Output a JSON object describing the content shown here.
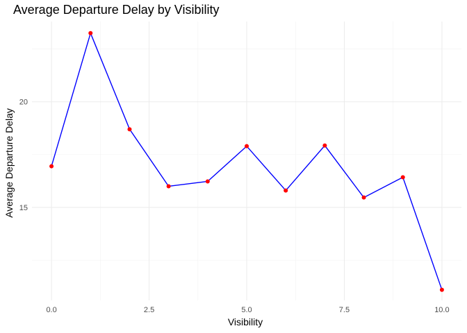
{
  "chart_data": {
    "type": "line",
    "title": "Average Departure Delay by Visibility",
    "xlabel": "Visibility",
    "ylabel": "Average Departure Delay",
    "x": [
      0,
      1,
      2,
      3,
      4,
      5,
      6,
      7,
      8,
      9,
      10
    ],
    "series": [
      {
        "values": [
          16.95,
          23.25,
          18.7,
          16.0,
          16.23,
          17.9,
          15.8,
          17.93,
          15.47,
          16.43,
          11.1
        ]
      }
    ],
    "xlim": [
      -0.5,
      10.5
    ],
    "ylim": [
      10.6,
      23.8
    ],
    "xticks": [
      0.0,
      2.5,
      5.0,
      7.5,
      10.0
    ],
    "xtick_labels": [
      "0.0",
      "2.5",
      "5.0",
      "7.5",
      "10.0"
    ],
    "yticks": [
      15,
      20
    ],
    "ytick_labels": [
      "15",
      "20"
    ],
    "x_minor_ticks": [
      1.25,
      3.75,
      6.25,
      8.75
    ],
    "y_minor_ticks": [
      12.5,
      17.5,
      22.5
    ],
    "grid": true,
    "line_color": "#0000ff",
    "point_color": "#ff0000"
  }
}
